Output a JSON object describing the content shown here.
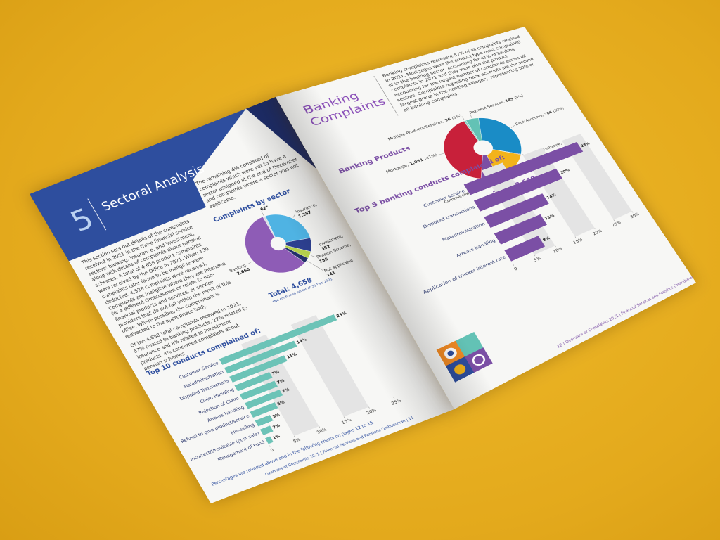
{
  "left_page": {
    "section_number": "5",
    "title": "Sectoral Analysis",
    "paragraphs": [
      "This section sets out details of the complaints received in 2021 in the three financial service sectors: banking, insurance, and investment, along with details of complaints about pension schemes. A total of 4,658 product complaints were received by the Office in 2021. When 130 complaints later found to be ineligible were deducted, 4,528 complaints were received. Complaints are ineligible where they are intended for a different Ombudsman or relate to non-financial products and services, or service providers that do not fall within the remit of this office. Where possible, the complainant is redirected to the appropriate body.",
      "Of the 4,658 total complaints received in 2021, 57% related to banking products, 27% related to insurance and 8% related to investment products. 4% concerned complaints about pension schemes."
    ],
    "side_text": "The remaining 4% consisted of complaints which were yet to have a sector assigned at the end of December and complaints where a sector was not applicable.",
    "pie": {
      "type": "pie",
      "title": "Complaints by sector",
      "labels": [
        null,
        "Insurance,",
        "Investment,",
        "Pension Scheme,",
        "Not applicable,",
        "Banking,"
      ],
      "values": [
        62,
        1257,
        352,
        186,
        141,
        2660
      ],
      "value_labels": [
        "62*",
        "1,257",
        "352",
        "186",
        "141",
        "2,660"
      ],
      "colors": [
        "#d9dde3",
        "#4fb3e3",
        "#2c3f8f",
        "#b4cf4c",
        "#223068",
        "#8e5cb6"
      ],
      "total": "Total: 4,658",
      "note": "*No confirmed sector at 31 Dec 2021"
    },
    "bars": {
      "type": "bar",
      "title": "Top 10 conducts complained of:",
      "categories": [
        "Customer Service",
        "Maladministration",
        "Disputed Transactions",
        "Claim Handling",
        "Rejection of Claim",
        "Arrears handling",
        "Refusal to give product/service",
        "Mis-selling",
        "Incorrect/Unsuitable (post sale)",
        "Management of Fund"
      ],
      "values": [
        23,
        14,
        11,
        7,
        7,
        7,
        5,
        3,
        2,
        1
      ],
      "value_labels": [
        "23%",
        "14%",
        "11%",
        "7%",
        "7%",
        "7%",
        "5%",
        "3%",
        "2%",
        "1%"
      ],
      "color": "#6cc3b7",
      "xlim": [
        0,
        25
      ],
      "xticks": [
        0,
        {
          "value": 5,
          "label": "5%"
        },
        {
          "value": 10,
          "label": "10%"
        },
        {
          "value": 15,
          "label": "15%"
        },
        {
          "value": 20,
          "label": "20%"
        },
        {
          "value": 25,
          "label": "25%"
        }
      ]
    },
    "footnote": "Percentages are rounded above and in the following charts on pages 12 to 15.",
    "footer": "Overview of Complaints 2021 | Financial Services and Pensions Ombudsman | 11"
  },
  "right_page": {
    "title_lines": [
      "Banking",
      "Complaints"
    ],
    "paragraph": "Banking complaints represent 57% of all complaints received in 2021. Mortgages were the product type most complained of in the banking sector, accounting for 41% of banking complaints in 2021 and they were also the product accounting for the largest number of complaints across all sectors. Complaints regarding bank accounts are the second largest group in the banking category, representing 30% of all banking complaints.",
    "pie": {
      "type": "pie",
      "title": "Banking Products",
      "labels": [
        "Payment Services,",
        "Bank Accounts,",
        "Foreign Exchange,",
        "Consumer Credit,",
        "Commercial,",
        "Mortgage,",
        "Multiple Products/Services,"
      ],
      "values": [
        145,
        786,
        7,
        431,
        184,
        1081,
        26
      ],
      "value_labels": [
        "145",
        "786",
        "7",
        "431",
        "184",
        "1,081",
        "26"
      ],
      "pct_labels": [
        "(5%)",
        "(30%)",
        "(<1%)",
        "(16%)",
        "(7%)",
        "(41%)",
        "(1%)"
      ],
      "colors": [
        "#63c2b5",
        "#1a8cc6",
        "#2c3f8f",
        "#f2b31b",
        "#7b4ea3",
        "#c8203a",
        "#8fd3c8"
      ],
      "total": "Total: 2,660"
    },
    "bars": {
      "type": "bar",
      "title": "Top 5 banking conducts complained of:",
      "categories": [
        "Customer service",
        "Disputed transactions",
        "Maladministration",
        "Arrears handling",
        "Application of tracker interest rate"
      ],
      "values": [
        28,
        20,
        14,
        11,
        8
      ],
      "value_labels": [
        "28%",
        "20%",
        "14%",
        "11%",
        "8%"
      ],
      "color": "#7b4fa5",
      "xlim": [
        0,
        30
      ],
      "xticks": [
        0,
        {
          "value": 5,
          "label": "5%"
        },
        {
          "value": 10,
          "label": "10%"
        },
        {
          "value": 15,
          "label": "15%"
        },
        {
          "value": 20,
          "label": "20%"
        },
        {
          "value": 25,
          "label": "25%"
        },
        {
          "value": 30,
          "label": "30%"
        }
      ]
    },
    "footer": "12 | Overview of Complaints 2021 | Financial Services and Pensions Ombudsman"
  }
}
